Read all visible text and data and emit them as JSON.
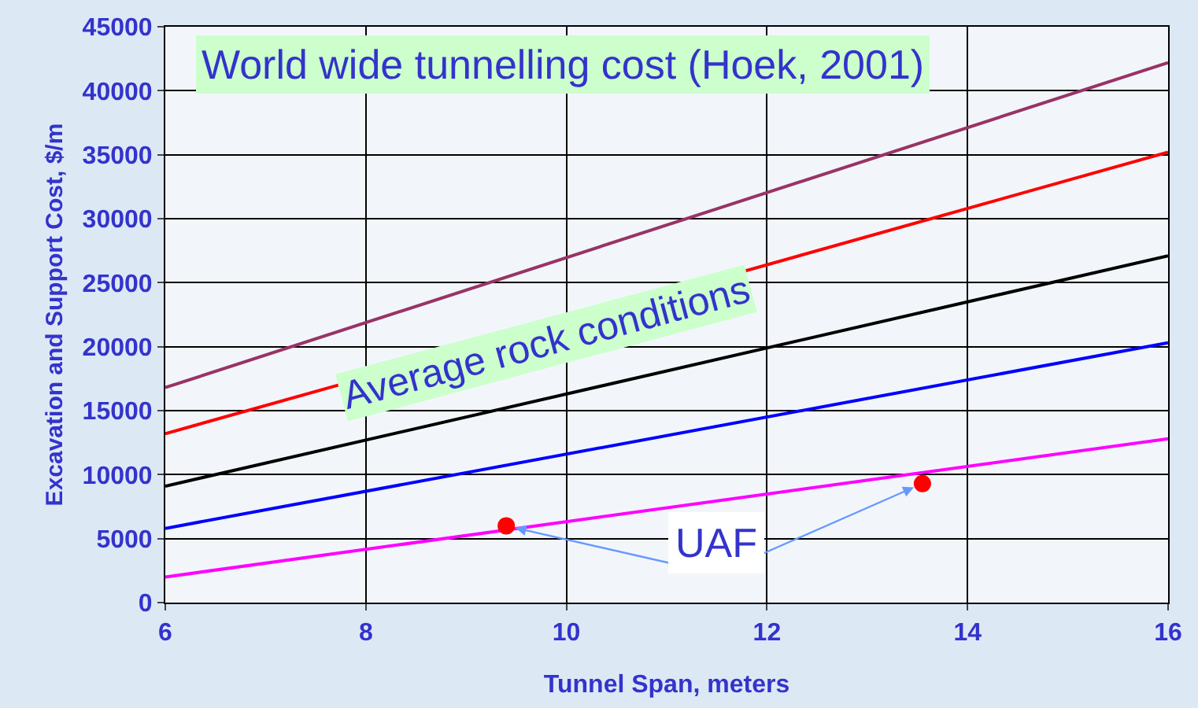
{
  "chart_data": {
    "type": "line",
    "title": "World wide tunnelling cost (Hoek, 2001)",
    "xlabel": "Tunnel Span, meters",
    "ylabel": "Excavation and Support Cost, $/m",
    "x": [
      6,
      16
    ],
    "series": [
      {
        "color": "#993366",
        "values": [
          16800,
          42200
        ]
      },
      {
        "color": "#ff0000",
        "values": [
          13200,
          35200
        ]
      },
      {
        "name": "Average rock conditions",
        "color": "#000000",
        "values": [
          9100,
          27100
        ]
      },
      {
        "color": "#0000ff",
        "values": [
          5800,
          20300
        ]
      },
      {
        "color": "#ff00ff",
        "values": [
          2000,
          12800
        ]
      },
      {
        "type": "scatter",
        "marker": "circle",
        "color": "#ff0000",
        "x": [
          9.4,
          13.55
        ],
        "values": [
          6000,
          9300
        ]
      }
    ],
    "annotations": [
      "UAF"
    ],
    "xlim": [
      6,
      16
    ],
    "ylim": [
      0,
      45000
    ],
    "xticks": [
      6,
      8,
      10,
      12,
      14,
      16
    ],
    "yticks": [
      0,
      5000,
      10000,
      15000,
      20000,
      25000,
      30000,
      35000,
      40000,
      45000
    ],
    "grid": true,
    "legend": false,
    "marker": "none"
  }
}
